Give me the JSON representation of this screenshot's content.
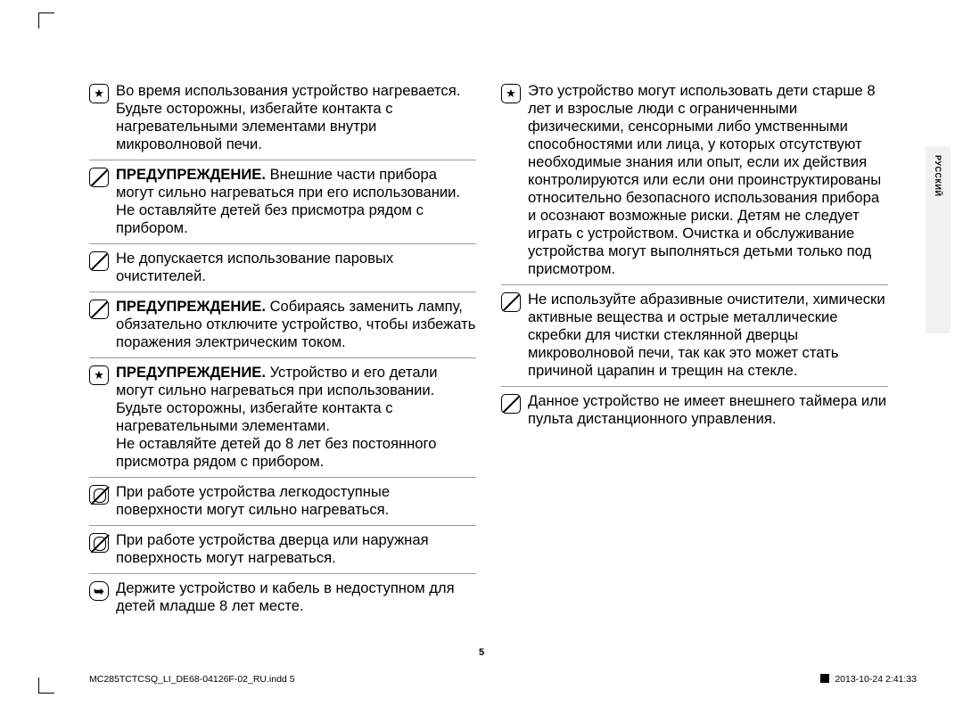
{
  "sideTab": "РУССКИЙ",
  "pageNumber": "5",
  "footer": {
    "file": "MC285TCTCSQ_LI_DE68-04126F-02_RU.indd   5",
    "timestamp": "2013-10-24    2:41:33"
  },
  "icons": {
    "star": "★",
    "arrow": "➥"
  },
  "left": [
    {
      "icon": "star",
      "text": "Во время использования устройство нагревается. Будьте осторожны, избегайте контакта с нагревательными элементами внутри микроволновой печи."
    },
    {
      "icon": "diag",
      "bold": "ПРЕДУПРЕЖДЕНИЕ.",
      "text": " Внешние части прибора могут сильно нагреваться при его использовании. Не оставляйте детей без присмотра рядом с прибором."
    },
    {
      "icon": "diag",
      "text": "Не допускается использование паровых очистителей."
    },
    {
      "icon": "diag",
      "bold": "ПРЕДУПРЕЖДЕНИЕ.",
      "text": " Собираясь заменить лампу, обязательно отключите устройство, чтобы избежать поражения электрическим током."
    },
    {
      "icon": "star",
      "bold": "ПРЕДУПРЕЖДЕНИЕ.",
      "text": " Устройство и его детали могут сильно нагреваться при использовании. Будьте осторожны, избегайте контакта с нагревательными элементами.\nНе оставляйте детей до 8 лет без постоянного присмотра рядом с прибором."
    },
    {
      "icon": "hand",
      "text": "При работе устройства легкодоступные поверхности могут сильно нагреваться."
    },
    {
      "icon": "hand",
      "text": "При работе устройства дверца или наружная поверхность могут нагреваться."
    },
    {
      "icon": "arrow",
      "text": "Держите устройство и кабель в недоступном для детей младше 8 лет месте."
    }
  ],
  "right": [
    {
      "icon": "star",
      "text": "Это устройство могут использовать дети старше 8 лет и взрослые люди с ограниченными физическими, сенсорными либо умственными способностями или лица, у которых отсутствуют необходимые знания или опыт, если их действия контролируются или если они проинструктированы относительно безопасного использования прибора и осознают возможные риски. Детям не следует играть с устройством. Очистка и обслуживание устройства могут выполняться детьми только под присмотром."
    },
    {
      "icon": "diag",
      "text": "Не используйте абразивные очистители, химически активные вещества и острые металлические скребки для чистки стеклянной дверцы микроволновой печи, так как это может стать причиной царапин и трещин на стекле."
    },
    {
      "icon": "diag",
      "text": "Данное устройство не имеет внешнего таймера или пульта дистанционного управления."
    }
  ]
}
